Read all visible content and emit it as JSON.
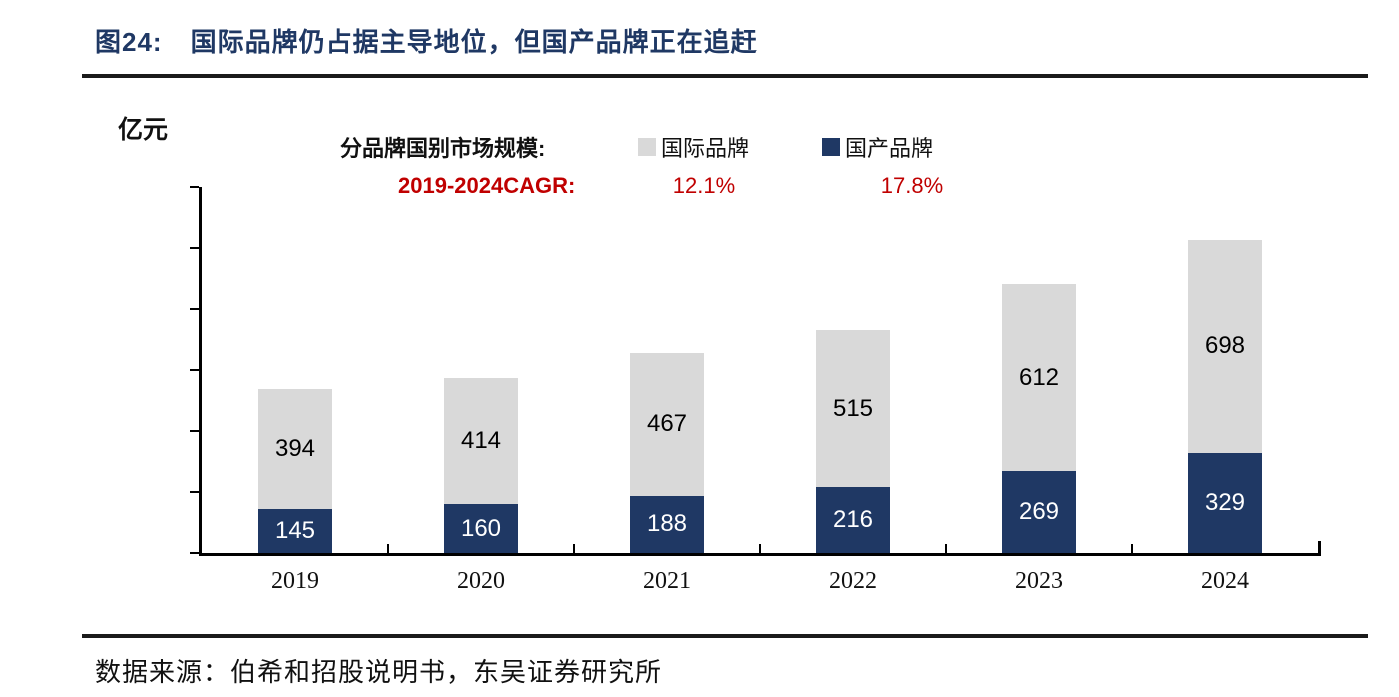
{
  "meta": {
    "figure_label": "图24:",
    "title": "国际品牌仍占据主导地位，但国产品牌正在追赶"
  },
  "unit_label": "亿元",
  "legend": {
    "heading": "分品牌国别市场规模:",
    "items": [
      {
        "label": "国际品牌",
        "color": "#d9d9d9"
      },
      {
        "label": "国产品牌",
        "color": "#1f3864"
      }
    ],
    "cagr_label": "2019-2024CAGR:",
    "cagr_values": {
      "international": "12.1%",
      "domestic": "17.8%"
    }
  },
  "chart_data": {
    "type": "bar",
    "stacked": true,
    "title": "分品牌国别市场规模",
    "categories": [
      "2019",
      "2020",
      "2021",
      "2022",
      "2023",
      "2024"
    ],
    "series": [
      {
        "name": "国产品牌",
        "color": "#1f3864",
        "label_color": "#ffffff",
        "values": [
          145,
          160,
          188,
          216,
          269,
          329
        ],
        "cagr_2019_2024": "17.8%"
      },
      {
        "name": "国际品牌",
        "color": "#d9d9d9",
        "label_color": "#000000",
        "values": [
          394,
          414,
          467,
          515,
          612,
          698
        ],
        "cagr_2019_2024": "12.1%"
      }
    ],
    "xlabel": "",
    "ylabel": "亿元",
    "ylim": [
      0,
      1200
    ],
    "yticks": [
      "0",
      "200",
      "400",
      "600",
      "800",
      "1,000",
      "1,200"
    ],
    "grid": false,
    "legend_position": "top"
  },
  "footer": {
    "source": "数据来源：伯希和招股说明书，东吴证券研究所"
  },
  "colors": {
    "accent_navy": "#1f3864",
    "bar_gray": "#d9d9d9",
    "cagr_red": "#c00000",
    "axis_black": "#000000"
  }
}
